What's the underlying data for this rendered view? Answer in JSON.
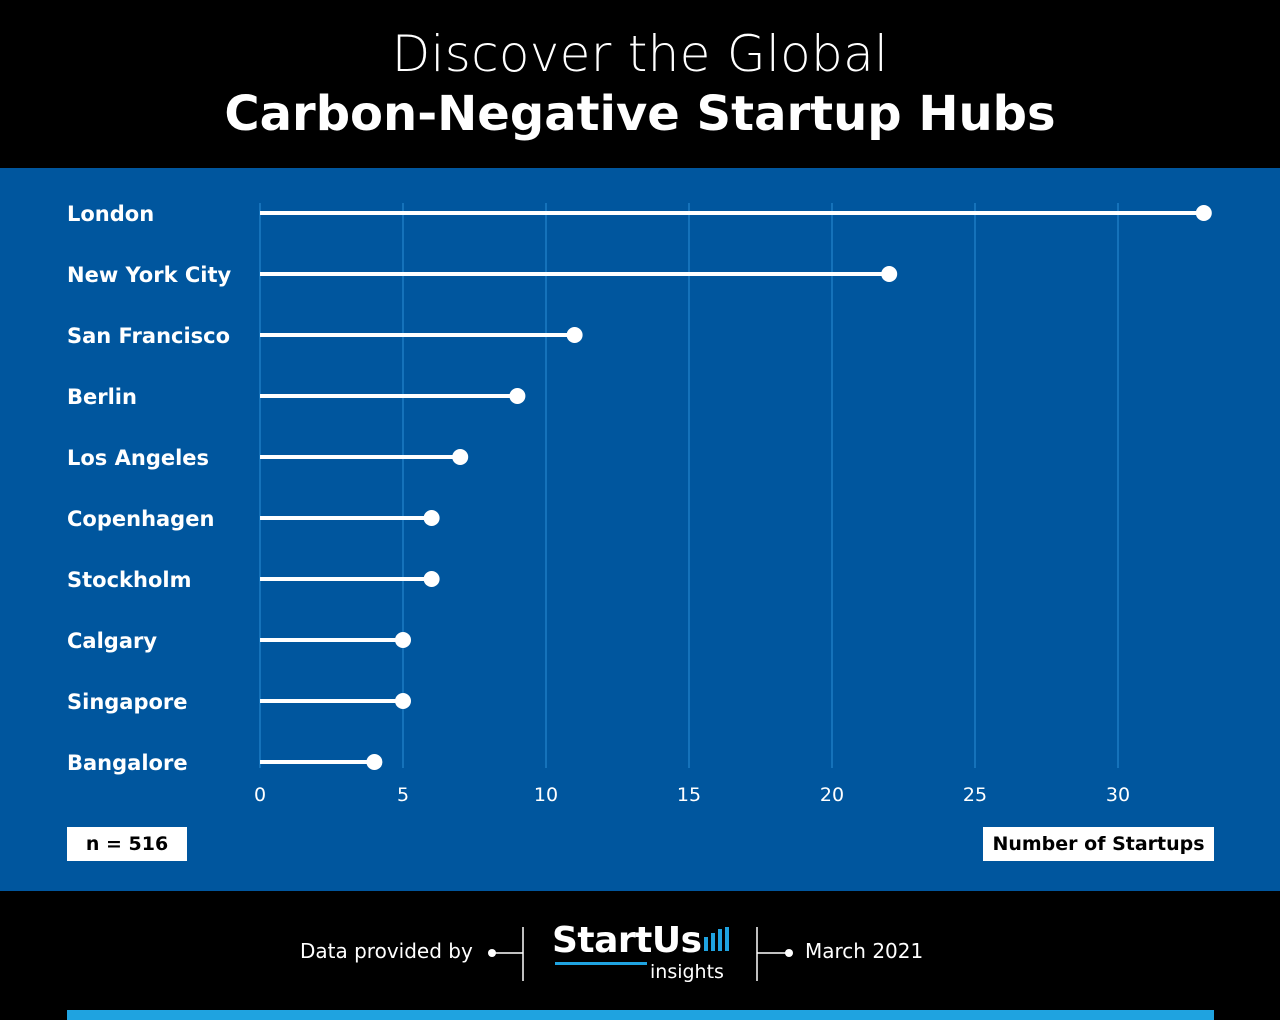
{
  "header": {
    "title_line1": "Discover the Global",
    "title_line2": "Carbon-Negative Startup Hubs"
  },
  "chart_data": {
    "type": "lollipop",
    "categories": [
      "London",
      "New York City",
      "San Francisco",
      "Berlin",
      "Los Angeles",
      "Copenhagen",
      "Stockholm",
      "Calgary",
      "Singapore",
      "Bangalore"
    ],
    "values": [
      33,
      22,
      11,
      9,
      7,
      6,
      6,
      5,
      5,
      4
    ],
    "xlim": [
      0,
      33
    ],
    "xticks": [
      "0",
      "5",
      "10",
      "15",
      "20",
      "25",
      "30"
    ],
    "grid": "vertical",
    "xlabel": "Number of Startups",
    "annotation": "n = 516"
  },
  "footer": {
    "provided_by": "Data provided by",
    "logo_word": "StartUs",
    "logo_sub": "insights",
    "date": "March 2021"
  },
  "colors": {
    "panel": "#00569e",
    "accent": "#1fa3e0",
    "gridline": "#2a8fd6",
    "mark": "#ffffff"
  }
}
